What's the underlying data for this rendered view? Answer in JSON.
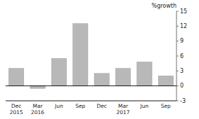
{
  "chart_data": {
    "type": "bar",
    "ylabel": "%growth",
    "categories": [
      "Dec\n2015",
      "Mar\n2016",
      "Jun",
      "Sep",
      "Dec",
      "Mar\n2017",
      "Jun",
      "Sep"
    ],
    "values": [
      3.5,
      -0.5,
      5.5,
      12.5,
      2.5,
      3.5,
      4.8,
      2.0
    ],
    "color": "#b8b8b8",
    "ylim": [
      -3,
      15
    ],
    "yticks": [
      -3,
      0,
      3,
      6,
      9,
      12,
      15
    ],
    "grid": false
  }
}
